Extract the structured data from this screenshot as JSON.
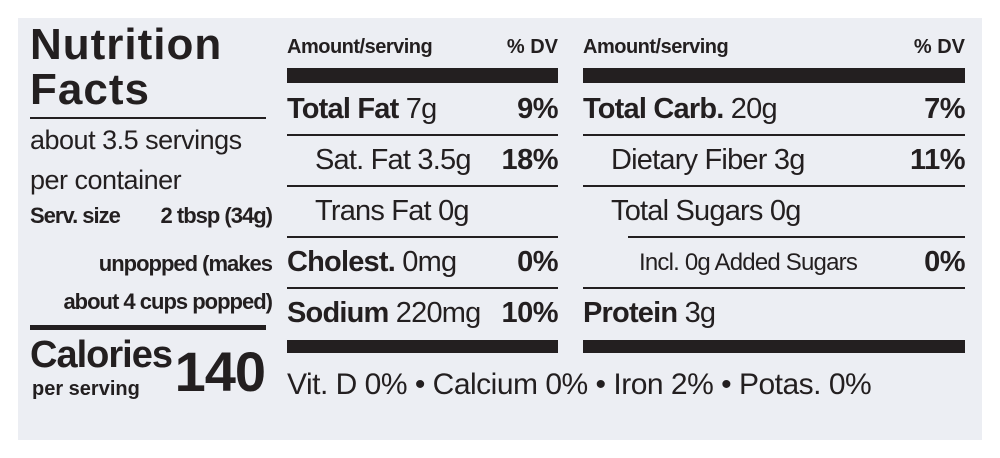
{
  "title": "Nutrition Facts",
  "servings": [
    "about 3.5 servings",
    "per container"
  ],
  "serving_size": {
    "label": "Serv. size",
    "value": "2 tbsp (34g)"
  },
  "serving_note": [
    "unpopped (makes",
    "about 4 cups popped)"
  ],
  "calories": {
    "label": "Calories",
    "sub": "per serving",
    "value": 140
  },
  "columns": [
    {
      "amount_header": "Amount/serving",
      "dv_header": "% DV",
      "rows": [
        {
          "name": "Total Fat",
          "amount": "7g",
          "dv": "9%",
          "level": 0
        },
        {
          "name": "Sat. Fat",
          "amount": "3.5g",
          "dv": "18%",
          "level": 1
        },
        {
          "name": "Trans Fat",
          "amount": "0g",
          "level": 1
        },
        {
          "name": "Cholest.",
          "amount": "0mg",
          "dv": "0%",
          "level": 0
        },
        {
          "name": "Sodium",
          "amount": "220mg",
          "dv": "10%",
          "level": 0
        }
      ]
    },
    {
      "amount_header": "Amount/serving",
      "dv_header": "% DV",
      "rows": [
        {
          "name": "Total Carb.",
          "amount": "20g",
          "dv": "7%",
          "level": 0
        },
        {
          "name": "Dietary Fiber",
          "amount": "3g",
          "dv": "11%",
          "level": 1
        },
        {
          "name": "Total Sugars",
          "amount": "0g",
          "level": 1
        },
        {
          "name": "Incl. 0g Added Sugars",
          "dv": "0%",
          "level": 2
        },
        {
          "name": "Protein",
          "amount": "3g",
          "level": 0
        }
      ]
    }
  ],
  "vitamins": "Vit. D 0% • Calcium 0% • Iron 2% • Potas. 0%"
}
